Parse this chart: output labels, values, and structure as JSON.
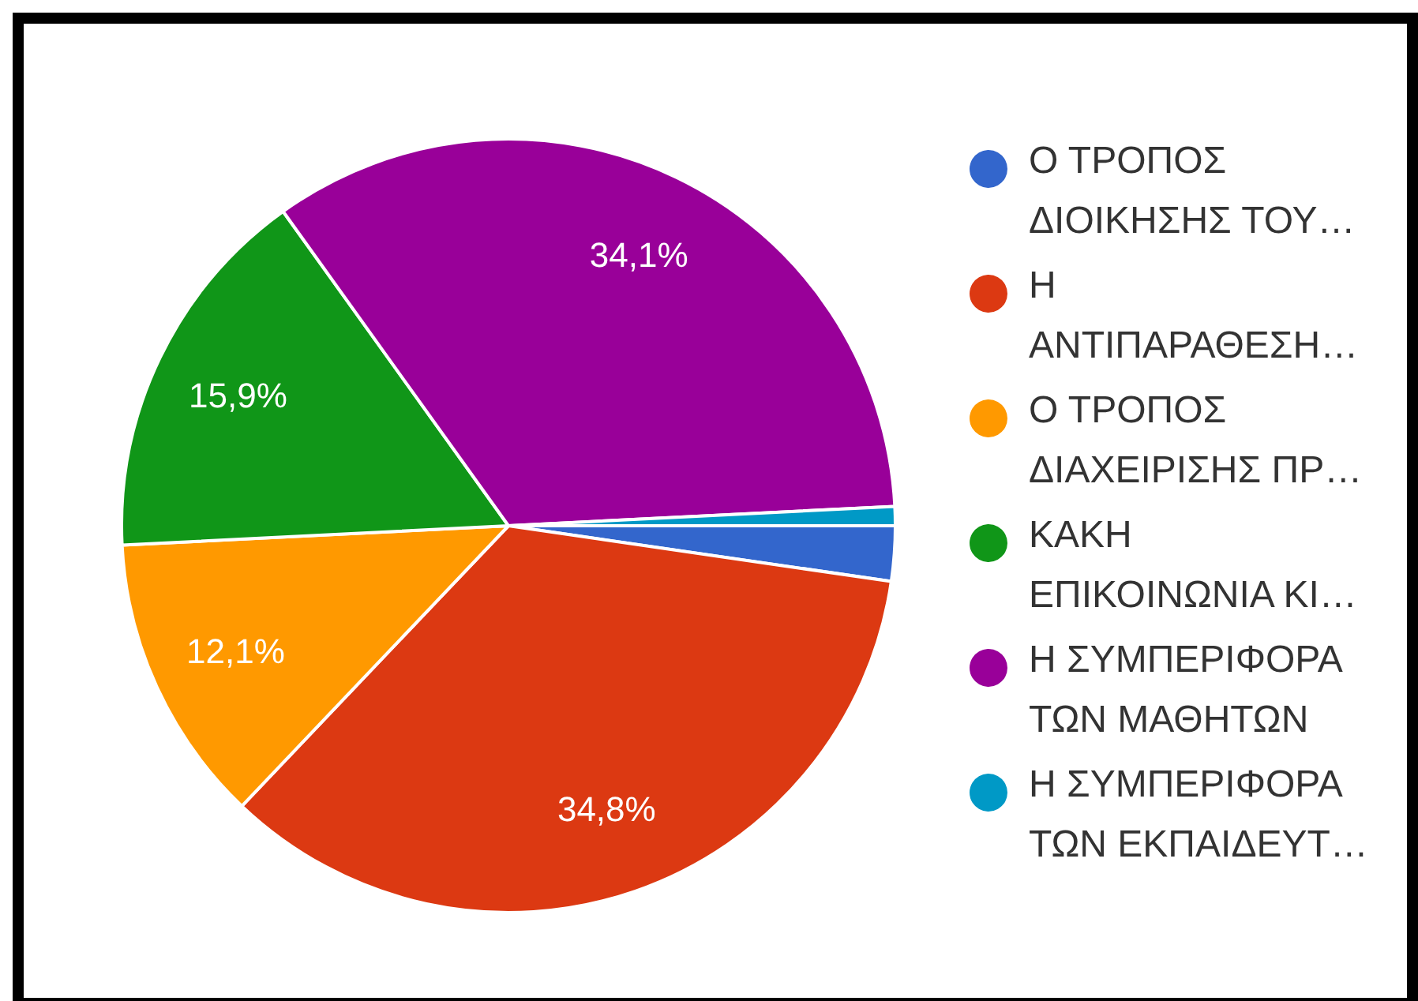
{
  "chart_data": {
    "type": "pie",
    "categories": [
      "Ο ΤΡΟΠΟΣ ΔΙΟΙΚΗΣΗΣ ΤΟΥ…",
      "Η ΑΝΤΙΠΑΡΑΘΕΣΗ…",
      "Ο ΤΡΟΠΟΣ ΔΙΑΧΕΙΡΙΣΗΣ ΠΡ…",
      "ΚΑΚΗ ΕΠΙΚΟΙΝΩΝΙΑ ΚΙ…",
      "Η ΣΥΜΠΕΡΙΦΟΡΑ ΤΩΝ ΜΑΘΗΤΩΝ",
      "Η ΣΥΜΠΕΡΙΦΟΡΑ ΤΩΝ ΕΚΠΑΙΔΕΥΤ…"
    ],
    "values": [
      2.3,
      34.8,
      12.1,
      15.9,
      34.1,
      0.8
    ],
    "colors": [
      "#3366cc",
      "#dc3912",
      "#ff9900",
      "#109618",
      "#990099",
      "#0099c6"
    ],
    "value_labels": [
      null,
      "34,8%",
      "12,1%",
      "15,9%",
      "34,1%",
      null
    ],
    "legend": "right"
  }
}
